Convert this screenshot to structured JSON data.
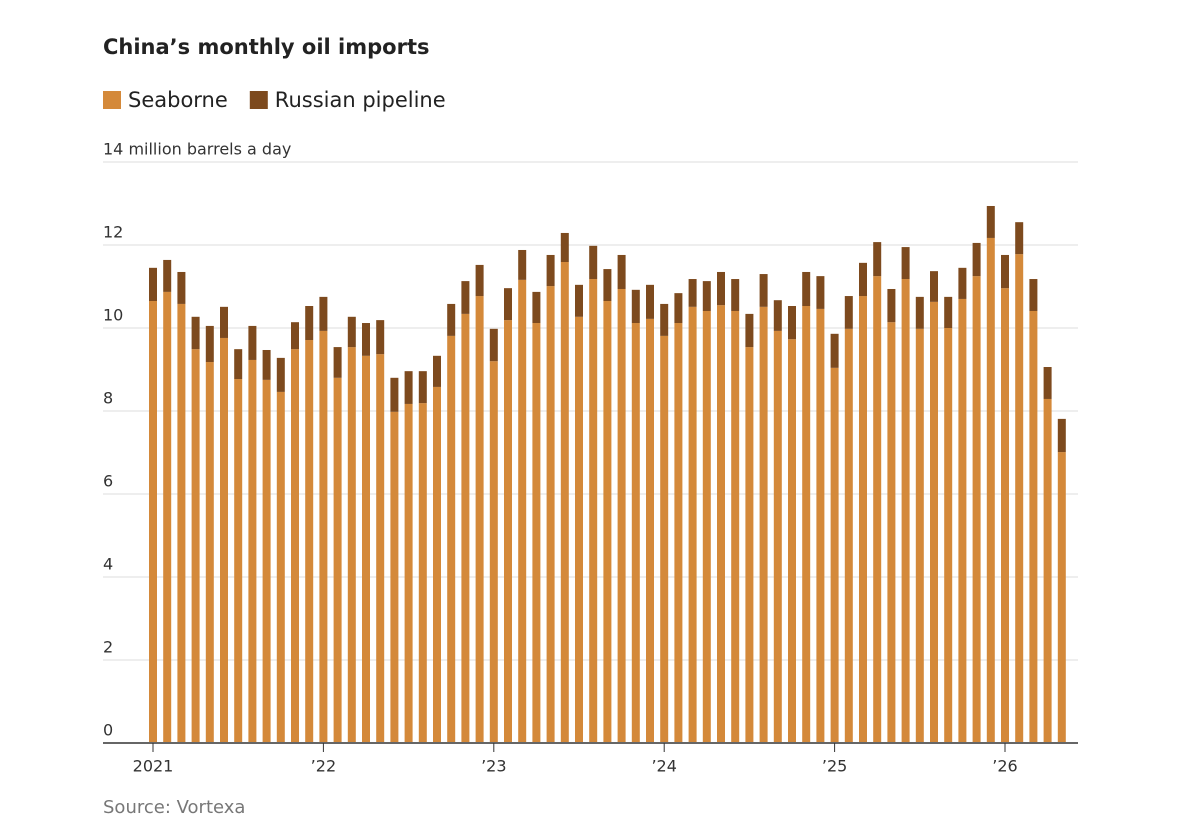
{
  "chart_data": {
    "type": "stacked-bar",
    "title": "China’s monthly oil imports",
    "source": "Source: Vortexa",
    "categories": [
      "2021",
      null,
      null,
      null,
      null,
      null,
      null,
      null,
      null,
      null,
      null,
      null,
      "’22",
      null,
      null,
      null,
      null,
      null,
      null,
      null,
      null,
      null,
      null,
      null,
      "’23",
      null,
      null,
      null,
      null,
      null,
      null,
      null,
      null,
      null,
      null,
      null,
      "’24",
      null,
      null,
      null,
      null,
      null,
      null,
      null,
      null,
      null,
      null,
      null,
      "’25",
      null,
      null,
      null,
      null,
      null,
      null,
      null,
      null,
      null,
      null,
      null,
      "’26",
      null,
      null,
      null,
      null
    ],
    "series": [
      {
        "name": "Seaborne",
        "color": "#d4893a",
        "values": [
          10.65,
          10.87,
          10.58,
          9.49,
          9.18,
          9.76,
          8.77,
          9.23,
          8.75,
          8.46,
          9.49,
          9.71,
          9.93,
          8.8,
          9.54,
          9.33,
          9.37,
          7.98,
          8.17,
          8.19,
          8.58,
          9.81,
          10.34,
          10.77,
          9.2,
          10.19,
          11.16,
          10.12,
          11.01,
          11.59,
          10.27,
          11.18,
          10.65,
          10.94,
          10.12,
          10.22,
          9.81,
          10.12,
          10.51,
          10.41,
          10.55,
          10.41,
          9.54,
          10.51,
          9.93,
          9.73,
          10.53,
          10.46,
          9.04,
          9.98,
          10.77,
          11.25,
          10.14,
          11.18,
          9.98,
          10.63,
          10,
          10.7,
          11.25,
          12.17,
          10.96,
          11.78,
          10.41,
          8.29,
          7.01
        ]
      },
      {
        "name": "Russian pipeline",
        "color": "#7d4a1e",
        "values": [
          0.8,
          0.77,
          0.77,
          0.78,
          0.87,
          0.75,
          0.72,
          0.82,
          0.72,
          0.82,
          0.65,
          0.82,
          0.82,
          0.74,
          0.73,
          0.79,
          0.82,
          0.82,
          0.79,
          0.77,
          0.75,
          0.77,
          0.79,
          0.75,
          0.78,
          0.77,
          0.72,
          0.75,
          0.75,
          0.7,
          0.77,
          0.8,
          0.77,
          0.82,
          0.8,
          0.82,
          0.77,
          0.72,
          0.67,
          0.72,
          0.8,
          0.77,
          0.8,
          0.79,
          0.74,
          0.8,
          0.82,
          0.79,
          0.82,
          0.79,
          0.8,
          0.82,
          0.8,
          0.77,
          0.77,
          0.74,
          0.75,
          0.75,
          0.8,
          0.77,
          0.8,
          0.77,
          0.77,
          0.77,
          0.8
        ]
      }
    ],
    "ylim": [
      0,
      14
    ],
    "yticks": [
      0,
      2,
      4,
      6,
      8,
      10,
      12,
      {
        "value": 14,
        "label": "14 million barrels a day"
      }
    ],
    "grid": true
  }
}
